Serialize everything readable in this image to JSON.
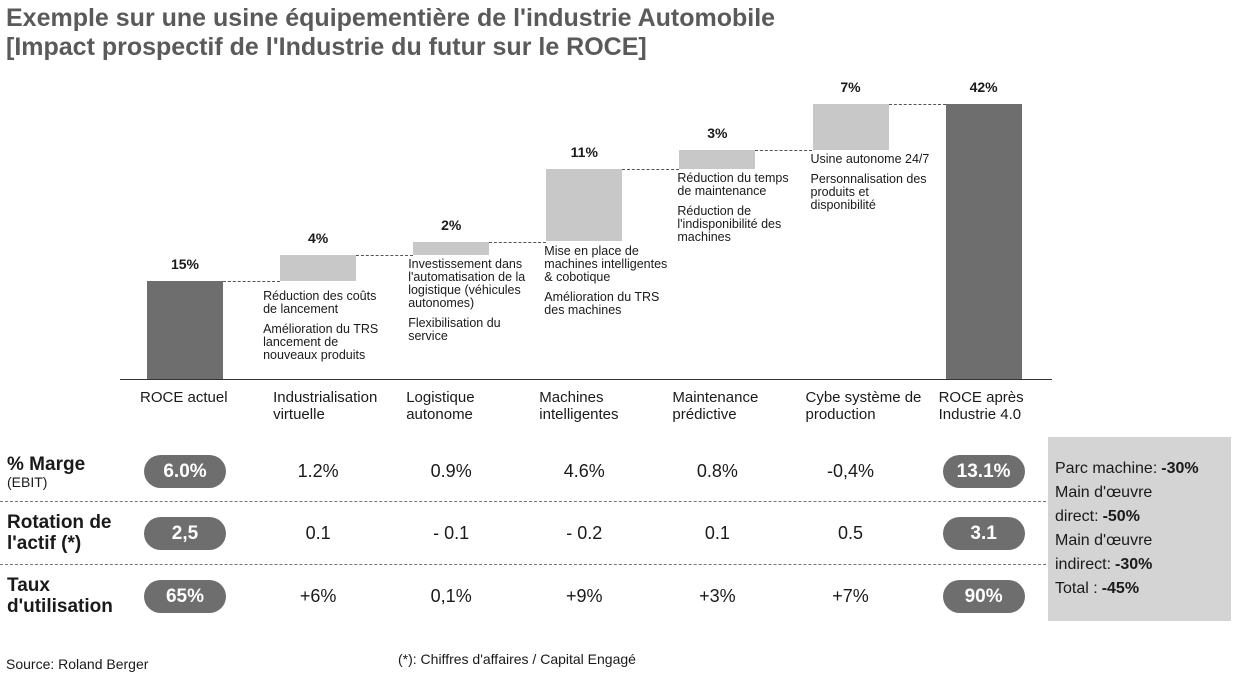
{
  "header": {
    "title": [
      "Exemple sur une usine équipementière de l'industrie Automobile",
      "[Impact prospectif de l'Industrie du futur sur le ROCE]"
    ]
  },
  "chart_data": {
    "type": "waterfall",
    "categories": [
      "ROCE actuel",
      "Industrialisation virtuelle",
      "Logistique autonome",
      "Machines intelligentes",
      "Maintenance prédictive",
      "Cybe système de production",
      "ROCE après Industrie 4.0"
    ],
    "values": [
      15,
      4,
      2,
      11,
      3,
      7,
      42
    ],
    "value_labels": [
      "15%",
      "4%",
      "2%",
      "11%",
      "3%",
      "7%",
      "42%"
    ],
    "measure": [
      "absolute",
      "relative",
      "relative",
      "relative",
      "relative",
      "relative",
      "total"
    ],
    "color": "#c8c8c8",
    "total_color": "#6e6e6e",
    "annotations": [
      [],
      [
        "Réduction des coûts de lancement",
        "Amélioration du TRS lancement de nouveaux produits"
      ],
      [
        "Investissement dans l'automatisation de la logistique (véhicules autonomes)",
        "Flexibilisation du service"
      ],
      [
        "Mise en place de machines intelligentes & cobotique",
        "Amélioration du TRS des machines"
      ],
      [
        "Réduction du temps de maintenance",
        "Réduction de l'indisponibilité des machines"
      ],
      [
        "Usine autonome 24/7",
        "Personnalisation des produits et disponibilité"
      ],
      []
    ]
  },
  "table": {
    "rows": [
      {
        "label": "% Marge",
        "sublabel": "(EBIT)",
        "values": [
          "6.0%",
          "1.2%",
          "0.9%",
          "4.6%",
          "0.8%",
          "-0,4%",
          "13.1%"
        ]
      },
      {
        "label": "Rotation de l'actif (*)",
        "values": [
          "2,5",
          "0.1",
          "- 0.1",
          "- 0.2",
          "0.1",
          "0.5",
          "3.1"
        ]
      },
      {
        "label": "Taux d'utilisation",
        "values": [
          "65%",
          "+6%",
          "0,1%",
          "+9%",
          "+3%",
          "+7%",
          "90%"
        ]
      }
    ]
  },
  "side_box": {
    "items": [
      {
        "label": "Parc machine:",
        "value": "-30%"
      },
      {
        "label": "Main d'œuvre direct:",
        "value": "-50%"
      },
      {
        "label": "Main d'œuvre indirect:",
        "value": "-30%"
      },
      {
        "label": "Total :",
        "value": "-45%"
      }
    ]
  },
  "footer": {
    "source": "Source: Roland Berger",
    "note": "(*): Chiffres d'affaires / Capital Engagé"
  }
}
